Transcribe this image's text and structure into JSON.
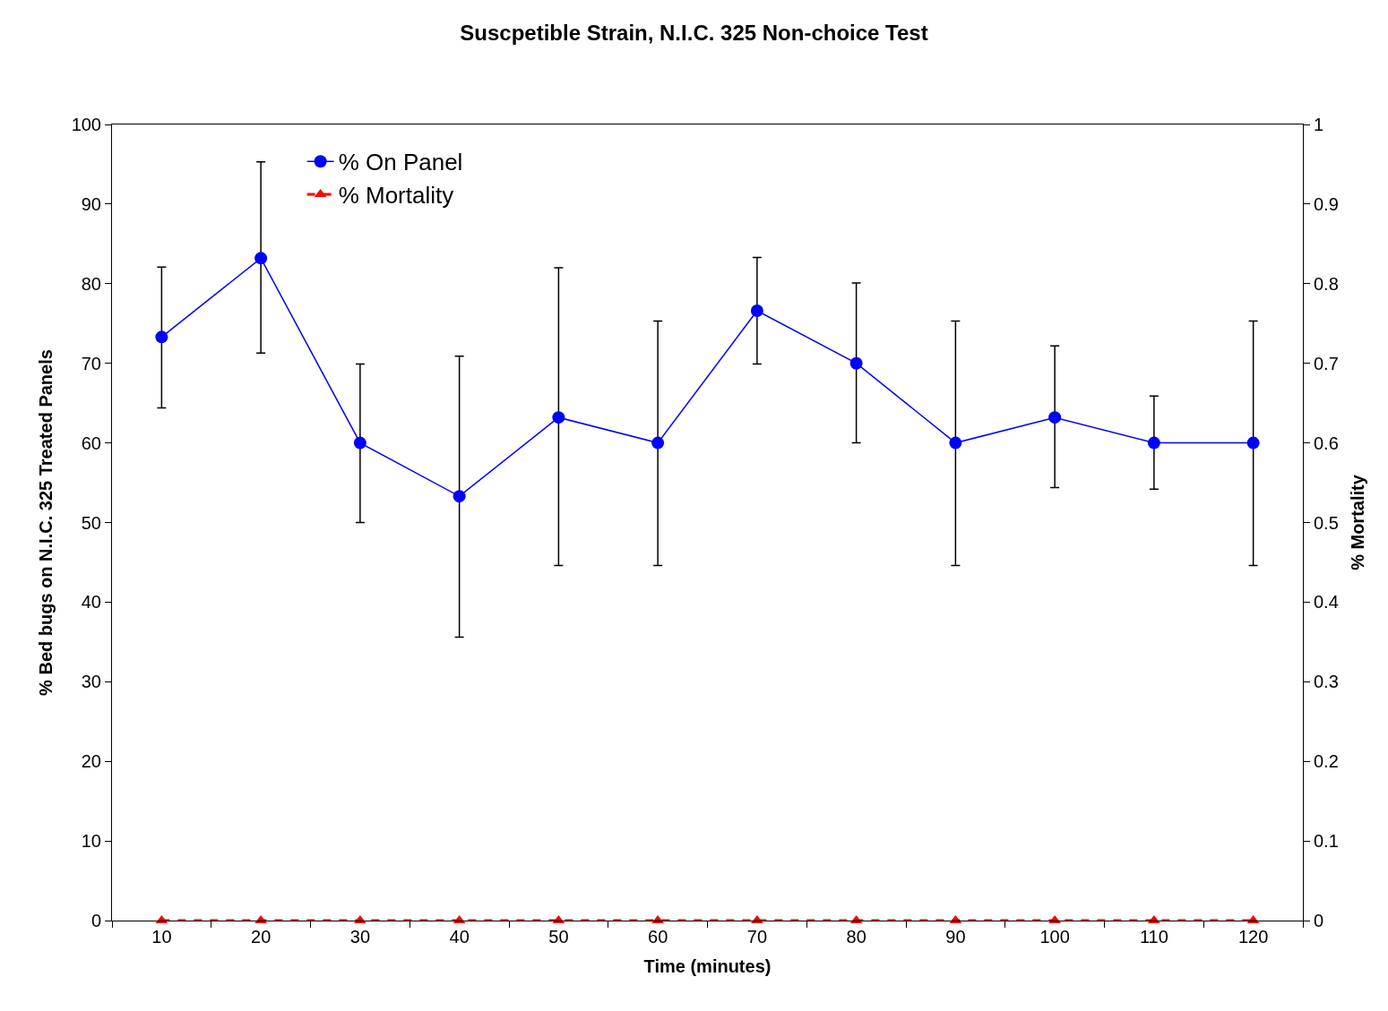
{
  "chart_data": {
    "type": "line",
    "title": "Suscpetible Strain, N.I.C. 325 Non-choice Test",
    "xlabel": "Time (minutes)",
    "ylabel": "% Bed bugs on N.I.C. 325 Treated Panels",
    "y2label": "% Mortality",
    "categories": [
      "10",
      "20",
      "30",
      "40",
      "50",
      "60",
      "70",
      "80",
      "90",
      "100",
      "110",
      "120"
    ],
    "series": [
      {
        "name": "% On Panel",
        "color": "#0000ff",
        "marker": "circle",
        "line_style": "solid",
        "values": [
          73.3,
          83.2,
          60,
          53.3,
          63.2,
          60,
          76.6,
          70,
          60,
          63.2,
          60,
          60
        ],
        "errors": [
          [
            64.4,
            82.1
          ],
          [
            71.3,
            95.3
          ],
          [
            50,
            69.9
          ],
          [
            35.6,
            70.9
          ],
          [
            44.6,
            82.0
          ],
          [
            44.6,
            75.3
          ],
          [
            69.9,
            83.3
          ],
          [
            60,
            80.1
          ],
          [
            44.6,
            75.3
          ],
          [
            54.4,
            72.2
          ],
          [
            54.2,
            65.9
          ],
          [
            44.6,
            75.3
          ]
        ]
      },
      {
        "name": "% Mortality",
        "color": "#ff0000",
        "marker": "triangle",
        "line_style": "dashed",
        "axis": "y2",
        "values": [
          0,
          0,
          0,
          0,
          0,
          0,
          0,
          0,
          0,
          0,
          0,
          0
        ]
      }
    ],
    "ylim": [
      0,
      100
    ],
    "yticks": [
      0,
      10,
      20,
      30,
      40,
      50,
      60,
      70,
      80,
      90,
      100
    ],
    "y2lim": [
      0,
      1
    ],
    "y2ticks": [
      0,
      0.1,
      0.2,
      0.3,
      0.4,
      0.5,
      0.6,
      0.7,
      0.8,
      0.9,
      1
    ],
    "legend": "top left"
  }
}
